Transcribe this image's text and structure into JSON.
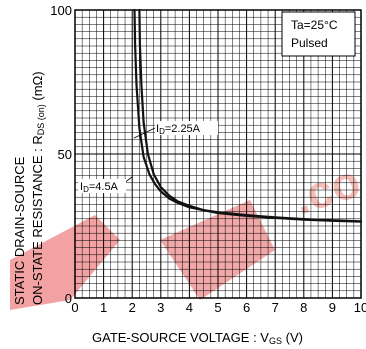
{
  "chart_data": {
    "type": "line",
    "xlabel_main": "GATE-SOURCE VOLTAGE : V",
    "xlabel_sub": "GS",
    "xlabel_unit": " (V)",
    "ylabel_line1_main": "STATIC  DRAIN-SOURCE",
    "ylabel_line2_main": "ON-STATE  RESISTANCE : R",
    "ylabel_line2_sub": "DS (on)",
    "ylabel_line2_unit": " (mΩ)",
    "xlim": [
      0,
      10
    ],
    "ylim": [
      0,
      100
    ],
    "x_ticks": [
      "0",
      "1",
      "2",
      "3",
      "4",
      "5",
      "6",
      "7",
      "8",
      "9",
      "10"
    ],
    "y_ticks": [
      "0",
      "50",
      "100"
    ],
    "grid": true,
    "conditions": {
      "line1": "Ta=25°C",
      "line2": "Pulsed"
    },
    "series": [
      {
        "name": "ID=2.25A",
        "label_main": "I",
        "label_sub": "D",
        "label_rest": "=2.25A",
        "color": "#111111",
        "x": [
          2.08,
          2.1,
          2.15,
          2.25,
          2.4,
          2.6,
          2.8,
          3.0,
          3.3,
          3.6,
          4.0,
          4.5,
          5.0,
          6.0,
          7.0,
          8.0,
          9.0,
          10.0
        ],
        "y": [
          100,
          88,
          74,
          59,
          49,
          43,
          39.5,
          37,
          34.5,
          33,
          31.5,
          30.5,
          29.5,
          28.5,
          27.8,
          27.2,
          26.8,
          26.5
        ]
      },
      {
        "name": "ID=4.5A",
        "label_main": "I",
        "label_sub": "D",
        "label_rest": "=4.5A",
        "color": "#111111",
        "x": [
          2.25,
          2.27,
          2.32,
          2.4,
          2.55,
          2.75,
          3.0,
          3.3,
          3.6,
          4.0,
          4.5,
          5.0,
          6.0,
          7.0,
          8.0,
          9.0,
          10.0
        ],
        "y": [
          100,
          88,
          74,
          61,
          50,
          43,
          38.5,
          35.5,
          33.5,
          32,
          30.5,
          29.8,
          28.8,
          28,
          27.4,
          27,
          26.6
        ]
      }
    ]
  }
}
